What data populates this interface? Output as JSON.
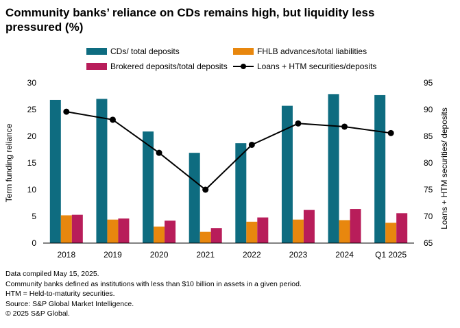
{
  "chart_data": {
    "type": "bar",
    "title": "Community banks’ reliance on CDs remains high, but liquidity less pressured (%)",
    "categories": [
      "2018",
      "2019",
      "2020",
      "2021",
      "2022",
      "2023",
      "2024",
      "Q1 2025"
    ],
    "series": [
      {
        "name": "CDs/ total deposits",
        "axis": "left",
        "kind": "bar",
        "color": "#0e6c80",
        "values": [
          26.8,
          27.0,
          20.9,
          16.9,
          18.7,
          25.7,
          27.9,
          27.7
        ]
      },
      {
        "name": "FHLB advances/total liabilities",
        "axis": "left",
        "kind": "bar",
        "color": "#e8870e",
        "values": [
          5.2,
          4.4,
          3.1,
          2.1,
          4.0,
          4.4,
          4.3,
          3.8
        ]
      },
      {
        "name": "Brokered deposits/total deposits",
        "axis": "left",
        "kind": "bar",
        "color": "#b81d5a",
        "values": [
          5.3,
          4.6,
          4.2,
          2.8,
          4.8,
          6.2,
          6.4,
          5.6
        ]
      },
      {
        "name": "Loans + HTM securities/deposits",
        "axis": "right",
        "kind": "line",
        "color": "#000000",
        "values": [
          89.6,
          88.1,
          81.9,
          75.0,
          83.4,
          87.4,
          86.8,
          85.6
        ]
      }
    ],
    "ylabel": "Term funding reliance",
    "ylim": [
      0,
      30
    ],
    "yticks": [
      "0",
      "5",
      "10",
      "15",
      "20",
      "25",
      "30"
    ],
    "y2label": "Loans + HTM securities/ deposits",
    "y2lim": [
      65,
      95
    ],
    "y2ticks": [
      "65",
      "70",
      "75",
      "80",
      "85",
      "90",
      "95"
    ],
    "legend": "top",
    "grid": false
  },
  "footnotes": [
    "Data compiled May 15, 2025.",
    "Community banks defined as institutions with less than $10 billion in assets in a given period.",
    "HTM = Held-to-maturity securities.",
    "Source: S&P Global Market Intelligence.",
    "© 2025 S&P Global."
  ]
}
